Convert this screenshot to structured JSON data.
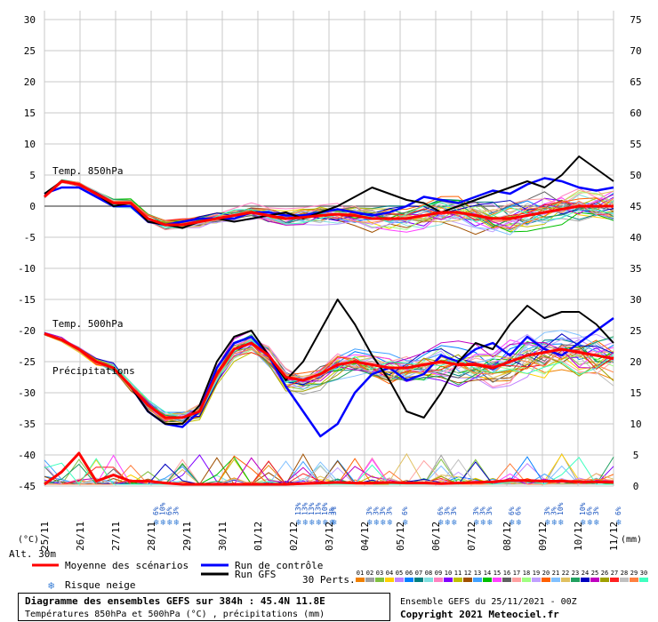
{
  "chart_data": {
    "type": "line",
    "title": "Diagramme des ensembles GEFS sur 384h : 45.4N 11.8E",
    "subtitle": "Températures 850hPa et 500hPa (°C) , précipitations (mm)",
    "left_axis": {
      "unit": "(°C)",
      "ylim": [
        -45,
        30
      ],
      "ticks": [
        "30",
        "25",
        "20",
        "15",
        "10",
        "5",
        "0",
        "-5",
        "-10",
        "-15",
        "-20",
        "-25",
        "-30",
        "-35",
        "-40",
        "-45"
      ]
    },
    "right_axis": {
      "unit": "(mm)",
      "ticks": [
        "75",
        "70",
        "65",
        "60",
        "55",
        "50",
        "45",
        "40",
        "35",
        "30",
        "25",
        "20",
        "15",
        "10",
        "5",
        "0"
      ]
    },
    "x_axis": {
      "dates": [
        "25/11",
        "26/11",
        "27/11",
        "28/11",
        "29/11",
        "30/11",
        "01/12",
        "02/12",
        "03/12",
        "04/12",
        "05/12",
        "06/12",
        "07/12",
        "08/12",
        "09/12",
        "10/12",
        "11/12"
      ]
    },
    "panel_labels": {
      "t850": "Temp. 850hPa",
      "t500": "Temp. 500hPa",
      "precip": "Précipitations"
    },
    "altitude_label": "Alt. 30m",
    "series": [
      {
        "name": "Moyenne des scénarios (Temp. 850hPa)",
        "color": "#ff0000",
        "values": [
          1.5,
          4,
          3.5,
          2,
          0.5,
          0.5,
          -2,
          -3,
          -3,
          -2.5,
          -2,
          -1.5,
          -1,
          -1.5,
          -2,
          -1.8,
          -1.5,
          -1.3,
          -1.5,
          -2,
          -2,
          -2,
          -1.5,
          -1,
          -1,
          -1.5,
          -2,
          -2,
          -1.5,
          -1,
          -0.5,
          0,
          0,
          0
        ]
      },
      {
        "name": "Run de contrôle (Temp. 850hPa)",
        "color": "#0000ff",
        "values": [
          2,
          3,
          3,
          1.5,
          0,
          0,
          -2.5,
          -3,
          -2.5,
          -2,
          -2,
          -2,
          -1,
          -1,
          -1.5,
          -1.5,
          -1,
          -0.5,
          -1,
          -1.5,
          -1,
          0,
          1.5,
          1,
          0.5,
          1.5,
          2.5,
          2,
          3.5,
          4.5,
          4,
          3,
          2.5,
          3
        ]
      },
      {
        "name": "Run GFS (Temp. 850hPa)",
        "color": "#000000",
        "values": [
          2,
          4,
          3.5,
          2,
          0,
          0.5,
          -2.5,
          -3,
          -3.5,
          -2.5,
          -2,
          -2.5,
          -2,
          -1.5,
          -1,
          -2,
          -1,
          0,
          1.5,
          3,
          2,
          1,
          0.5,
          -1,
          0,
          1,
          2,
          3,
          4,
          3,
          5,
          8,
          6,
          4
        ]
      },
      {
        "name": "Moyenne des scénarios (Temp. 500hPa)",
        "color": "#ff0000",
        "values": [
          -20.5,
          -21.5,
          -23,
          -25,
          -26,
          -29,
          -32,
          -34,
          -34,
          -33,
          -27,
          -23,
          -22,
          -24,
          -27.5,
          -28,
          -27,
          -25.5,
          -25,
          -25.5,
          -26,
          -26,
          -25.5,
          -25,
          -25.5,
          -25.5,
          -26,
          -25,
          -24,
          -23.5,
          -23,
          -23.5,
          -24,
          -24.5
        ]
      },
      {
        "name": "Run de contrôle (Temp. 500hPa)",
        "color": "#0000ff",
        "values": [
          -20.5,
          -21.5,
          -23,
          -25,
          -26,
          -29,
          -33,
          -35,
          -35.5,
          -33,
          -26,
          -22,
          -21,
          -24,
          -29,
          -33,
          -37,
          -35,
          -30,
          -27,
          -26,
          -28,
          -27,
          -24,
          -25,
          -23,
          -22,
          -24,
          -21,
          -23,
          -24,
          -22,
          -20,
          -18
        ]
      },
      {
        "name": "Run GFS (Temp. 500hPa)",
        "color": "#000000",
        "values": [
          -20.5,
          -21.5,
          -23,
          -25,
          -26,
          -29,
          -33,
          -35,
          -35,
          -32,
          -25,
          -21,
          -20,
          -24,
          -28,
          -25,
          -20,
          -15,
          -19,
          -24,
          -28,
          -33,
          -34,
          -30,
          -25,
          -22,
          -23,
          -19,
          -16,
          -18,
          -17,
          -17,
          -19,
          -22
        ]
      },
      {
        "name": "Moyenne des scénarios (précipitations, mm)",
        "color": "#ff0000",
        "values": [
          0,
          2,
          5,
          0.5,
          1.5,
          0.5,
          0.5,
          0.2,
          0,
          0,
          0,
          0,
          0,
          0,
          0,
          0.1,
          0.2,
          0.3,
          0.2,
          0.2,
          0.3,
          0.2,
          0.2,
          0.1,
          0.2,
          0.3,
          0.4,
          0.6,
          0.6,
          0.5,
          0.5,
          0.4,
          0.4,
          0.3
        ]
      }
    ],
    "legend": {
      "mean": "Moyenne des scénarios",
      "control": "Run de contrôle",
      "gfs": "Run GFS",
      "snow": "Risque neige",
      "perts": "30 Perts."
    },
    "snow_risk": [
      {
        "date_index": 3,
        "labels": [
          "6%",
          "10%",
          "6%",
          "3%"
        ]
      },
      {
        "date_index": 7,
        "labels": [
          "13%",
          "13%",
          "13%",
          "13%",
          "10%",
          "3%"
        ]
      },
      {
        "date_index": 8,
        "labels": [
          "3%"
        ]
      },
      {
        "date_index": 9,
        "labels": [
          "3%",
          "3%",
          "3%",
          "3%"
        ]
      },
      {
        "date_index": 10,
        "labels": [
          "6%"
        ]
      },
      {
        "date_index": 11,
        "labels": [
          "6%",
          "3%",
          "3%"
        ]
      },
      {
        "date_index": 12,
        "labels": [
          "3%",
          "3%",
          "3%"
        ]
      },
      {
        "date_index": 13,
        "labels": [
          "6%",
          "6%"
        ]
      },
      {
        "date_index": 14,
        "labels": [
          "3%",
          "3%",
          "10%"
        ]
      },
      {
        "date_index": 15,
        "labels": [
          "10%",
          "6%",
          "3%"
        ]
      },
      {
        "date_index": 16,
        "labels": [
          "6%"
        ]
      }
    ],
    "pert_labels": [
      "01",
      "02",
      "03",
      "04",
      "05",
      "06",
      "07",
      "08",
      "09",
      "10",
      "11",
      "12",
      "13",
      "14",
      "15",
      "16",
      "17",
      "18",
      "19",
      "20",
      "21",
      "22",
      "23",
      "24",
      "25",
      "26",
      "27",
      "28",
      "29",
      "30"
    ],
    "pert_colors": [
      "#f08000",
      "#a0a0a0",
      "#80c040",
      "#ffd000",
      "#c080ff",
      "#0080ff",
      "#008080",
      "#80e0e0",
      "#ff80c0",
      "#8000ff",
      "#c0c000",
      "#a05000",
      "#40a0ff",
      "#00c000",
      "#ff40ff",
      "#606060",
      "#ffa0a0",
      "#a0ff80",
      "#c0a0ff",
      "#ff6000",
      "#80c0ff",
      "#e0c060",
      "#20a060",
      "#0000c0",
      "#c000c0",
      "#a0a000",
      "#ff2020",
      "#c0c0c0",
      "#ff8040",
      "#40ffc0"
    ]
  },
  "footer": {
    "title": "Diagramme des ensembles GEFS sur 384h : 45.4N 11.8E",
    "subtitle": "Températures 850hPa et 500hPa (°C) , précipitations (mm)",
    "run": "Ensemble GEFS du 25/11/2021 - 00Z",
    "copyright": "Copyright 2021 Meteociel.fr"
  }
}
